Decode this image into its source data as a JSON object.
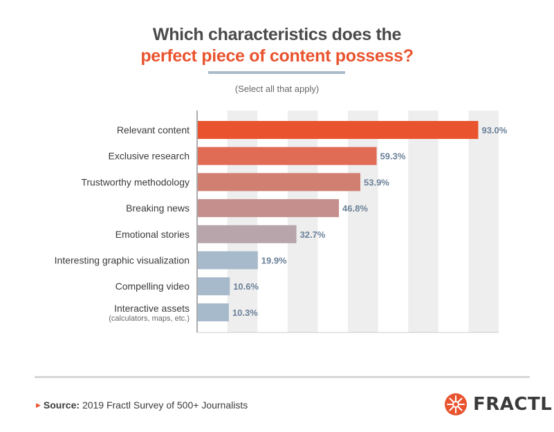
{
  "header": {
    "title_line1": "Which characteristics does the",
    "title_line2": "perfect piece of content possess?",
    "subtitle": "(Select all that apply)"
  },
  "colors": {
    "title_accent": "#e9542f",
    "bar_gradient": [
      "#e9542f",
      "#e06c55",
      "#d07f71",
      "#c48f8c",
      "#b8a4ab",
      "#a7bacb",
      "#a7bacb",
      "#a7bacb"
    ],
    "value_label": "#6b8099",
    "grid_band": "#eeeeee"
  },
  "chart_data": {
    "type": "bar",
    "orientation": "horizontal",
    "title": "Which characteristics does the perfect piece of content possess?",
    "subtitle": "(Select all that apply)",
    "categories": [
      "Relevant content",
      "Exclusive research",
      "Trustworthy methodology",
      "Breaking news",
      "Emotional stories",
      "Interesting graphic visualization",
      "Compelling video",
      "Interactive assets"
    ],
    "category_sublabels": [
      "",
      "",
      "",
      "",
      "",
      "",
      "",
      "(calculators, maps, etc.)"
    ],
    "values": [
      93.0,
      59.3,
      53.9,
      46.8,
      32.7,
      19.9,
      10.6,
      10.3
    ],
    "value_labels": [
      "93.0%",
      "59.3%",
      "53.9%",
      "46.8%",
      "32.7%",
      "19.9%",
      "10.6%",
      "10.3%"
    ],
    "xlim": [
      0,
      100
    ],
    "grid": true
  },
  "footer": {
    "source_label": "Source:",
    "source_text": "2019 Fractl Survey of 500+ Journalists",
    "brand": "FRACTL",
    "brand_icon": "fractl-snowflake-icon"
  }
}
